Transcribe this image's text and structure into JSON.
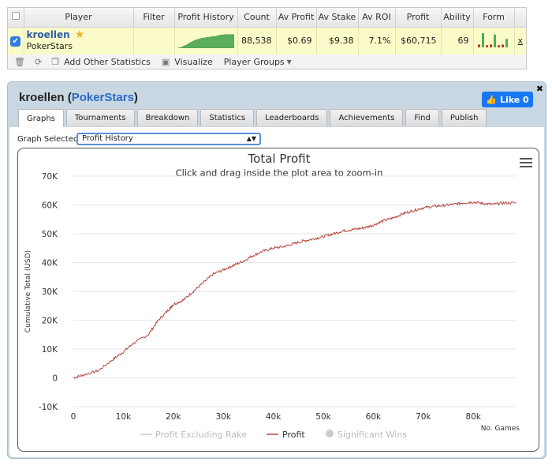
{
  "table": {
    "headers": [
      "Player",
      "Filter",
      "Profit History",
      "Count",
      "Av Profit",
      "Av Stake",
      "Av ROI",
      "Profit",
      "Ability",
      "Form"
    ],
    "row": {
      "player_name": "kroellen",
      "site": "PokerStars",
      "filter": "",
      "count": "88,538",
      "av_profit": "$0.69",
      "av_stake": "$9.38",
      "av_roi": "7.1%",
      "profit": "$60,715",
      "ability": "69",
      "remove": "x"
    },
    "form_bars": [
      0.2,
      1,
      0.15,
      0.2,
      0.9,
      0.15,
      0.2,
      0.6
    ],
    "toolbar": {
      "add_stats": "Add Other Statistics",
      "visualize": "Visualize",
      "player_groups": "Player Groups"
    }
  },
  "panel": {
    "player_name": "kroellen",
    "site": "PokerStars",
    "like_label": "Like 0",
    "close_label": "✖",
    "tabs": [
      "Graphs",
      "Tournaments",
      "Breakdown",
      "Statistics",
      "Leaderboards",
      "Achievements",
      "Find",
      "Publish"
    ],
    "active_tab": 0,
    "graph_select_label": "Graph Selected:",
    "graph_selected": "Profit History"
  },
  "colors": {
    "profit_line": "#b5443f",
    "excluding_rake": "#cccccc",
    "significant_wins": "#cccccc",
    "accent": "#2a6bc2"
  },
  "chart_data": {
    "type": "line",
    "title": "Total Profit",
    "subtitle": "Click and drag inside the plot area to zoom-in",
    "ylabel": "Cumulative Total (USD)",
    "xlabel": "No. Games",
    "ylim": [
      -10000,
      70000
    ],
    "xlim": [
      0,
      88538
    ],
    "yticks": [
      "-10K",
      "0",
      "10K",
      "20K",
      "30K",
      "40K",
      "50K",
      "60K",
      "70K"
    ],
    "xticks": [
      "0",
      "10k",
      "20k",
      "30k",
      "40k",
      "50k",
      "60k",
      "70k",
      "80k"
    ],
    "legend": [
      "Profit Excluding Rake",
      "Profit",
      "Significant Wins"
    ],
    "legend_position": "bottom",
    "series": [
      {
        "name": "Profit",
        "x": [
          0,
          2000,
          5000,
          8000,
          10000,
          12000,
          15000,
          17000,
          19000,
          20000,
          22000,
          24000,
          26000,
          28000,
          30000,
          32000,
          34000,
          36000,
          38000,
          40000,
          42000,
          44000,
          46000,
          48000,
          50000,
          52000,
          54000,
          56000,
          58000,
          60000,
          62000,
          64000,
          66000,
          68000,
          70000,
          72000,
          74000,
          76000,
          78000,
          80000,
          82000,
          84000,
          86000,
          88538
        ],
        "y": [
          0,
          1000,
          2500,
          6500,
          9000,
          12000,
          15000,
          20000,
          23500,
          25500,
          27000,
          30000,
          33000,
          36000,
          37500,
          39000,
          40500,
          42500,
          44000,
          45000,
          45500,
          46500,
          47500,
          48200,
          49000,
          50000,
          51000,
          51500,
          52000,
          53000,
          54500,
          55500,
          57000,
          58000,
          59000,
          59500,
          59800,
          60200,
          60700,
          61000,
          60500,
          60200,
          60700,
          60715
        ]
      }
    ]
  }
}
